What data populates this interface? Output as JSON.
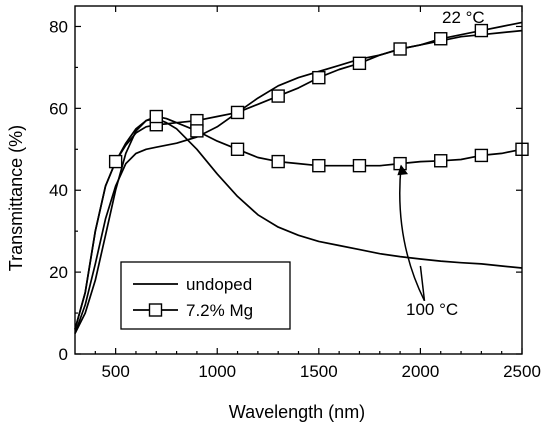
{
  "chart_data": {
    "type": "line",
    "title": "",
    "xlabel": "Wavelength (nm)",
    "ylabel": "Transmittance (%)",
    "xlim": [
      300,
      2500
    ],
    "ylim": [
      0,
      85
    ],
    "xticks": [
      500,
      1000,
      1500,
      2000,
      2500
    ],
    "yticks": [
      0,
      20,
      40,
      60,
      80
    ],
    "grid": false,
    "legend": {
      "placement": "bottom-left",
      "entries": [
        {
          "label": "undoped",
          "marker": "none"
        },
        {
          "label": "7.2% Mg",
          "marker": "open-square"
        }
      ]
    },
    "annotations": [
      {
        "text": "22 °C",
        "x": 2200,
        "y": 84
      },
      {
        "text": "100 °C",
        "x": 2020,
        "y": 11
      }
    ],
    "series": [
      {
        "legend_index": 0,
        "condition_index": 0,
        "marker": "none",
        "x": [
          300,
          350,
          400,
          450,
          500,
          550,
          600,
          650,
          700,
          750,
          800,
          900,
          1000,
          1100,
          1200,
          1300,
          1400,
          1500,
          1600,
          1700,
          1800,
          1900,
          2000,
          2100,
          2200,
          2300,
          2400,
          2500
        ],
        "y": [
          5,
          12,
          22,
          33,
          41,
          46.5,
          49,
          50,
          50.5,
          51,
          51.5,
          53,
          55.5,
          59,
          62.5,
          65.5,
          67.5,
          69,
          70.5,
          72,
          73,
          74.5,
          75.5,
          76.5,
          77.5,
          78,
          78.5,
          79
        ]
      },
      {
        "legend_index": 0,
        "condition_index": 1,
        "marker": "none",
        "x": [
          300,
          350,
          400,
          450,
          500,
          550,
          600,
          650,
          700,
          750,
          800,
          900,
          1000,
          1100,
          1200,
          1300,
          1400,
          1500,
          1600,
          1700,
          1800,
          1900,
          2000,
          2100,
          2200,
          2300,
          2400,
          2500
        ],
        "y": [
          5,
          10,
          18,
          29,
          40,
          49,
          54.5,
          57,
          57.5,
          56.5,
          55,
          50,
          44,
          38.5,
          34,
          31,
          29,
          27.5,
          26.5,
          25.5,
          24.5,
          23.8,
          23.2,
          22.7,
          22.3,
          22,
          21.5,
          21
        ]
      },
      {
        "legend_index": 1,
        "condition_index": 0,
        "marker": "open-square",
        "x": [
          300,
          350,
          400,
          450,
          500,
          550,
          600,
          650,
          700,
          750,
          800,
          900,
          1000,
          1100,
          1200,
          1300,
          1400,
          1500,
          1600,
          1700,
          1800,
          1900,
          2000,
          2100,
          2200,
          2300,
          2400,
          2500
        ],
        "y": [
          6,
          15,
          30,
          41,
          47,
          51,
          54,
          55.5,
          56,
          56.2,
          56.5,
          57,
          58,
          59,
          61,
          63,
          65,
          67.5,
          69.5,
          71,
          73,
          74.5,
          75.5,
          77,
          78,
          79,
          80,
          81
        ],
        "markers_x": [
          700,
          900,
          1100,
          1300,
          1500,
          1700,
          1900,
          2100,
          2300
        ],
        "markers_y": [
          56,
          57,
          59,
          63,
          67.5,
          71,
          74.5,
          77,
          79
        ]
      },
      {
        "legend_index": 1,
        "condition_index": 1,
        "marker": "open-square",
        "x": [
          300,
          350,
          400,
          450,
          500,
          550,
          600,
          650,
          700,
          750,
          800,
          900,
          1000,
          1100,
          1200,
          1300,
          1400,
          1500,
          1600,
          1700,
          1800,
          1900,
          2000,
          2100,
          2200,
          2300,
          2400,
          2500
        ],
        "y": [
          6,
          15,
          30,
          41,
          47,
          51.5,
          55,
          57,
          58,
          57.5,
          56.5,
          54.5,
          52,
          50,
          48,
          47,
          46.5,
          46,
          46,
          46,
          46,
          46.5,
          47,
          47.2,
          47.5,
          48.5,
          49,
          50
        ],
        "markers_x": [
          500,
          700,
          900,
          1100,
          1300,
          1500,
          1700,
          1900,
          2100,
          2300,
          2500
        ],
        "markers_y": [
          47,
          58,
          54.5,
          50,
          47,
          46,
          46,
          46.5,
          47.2,
          48.5,
          50
        ]
      }
    ]
  }
}
